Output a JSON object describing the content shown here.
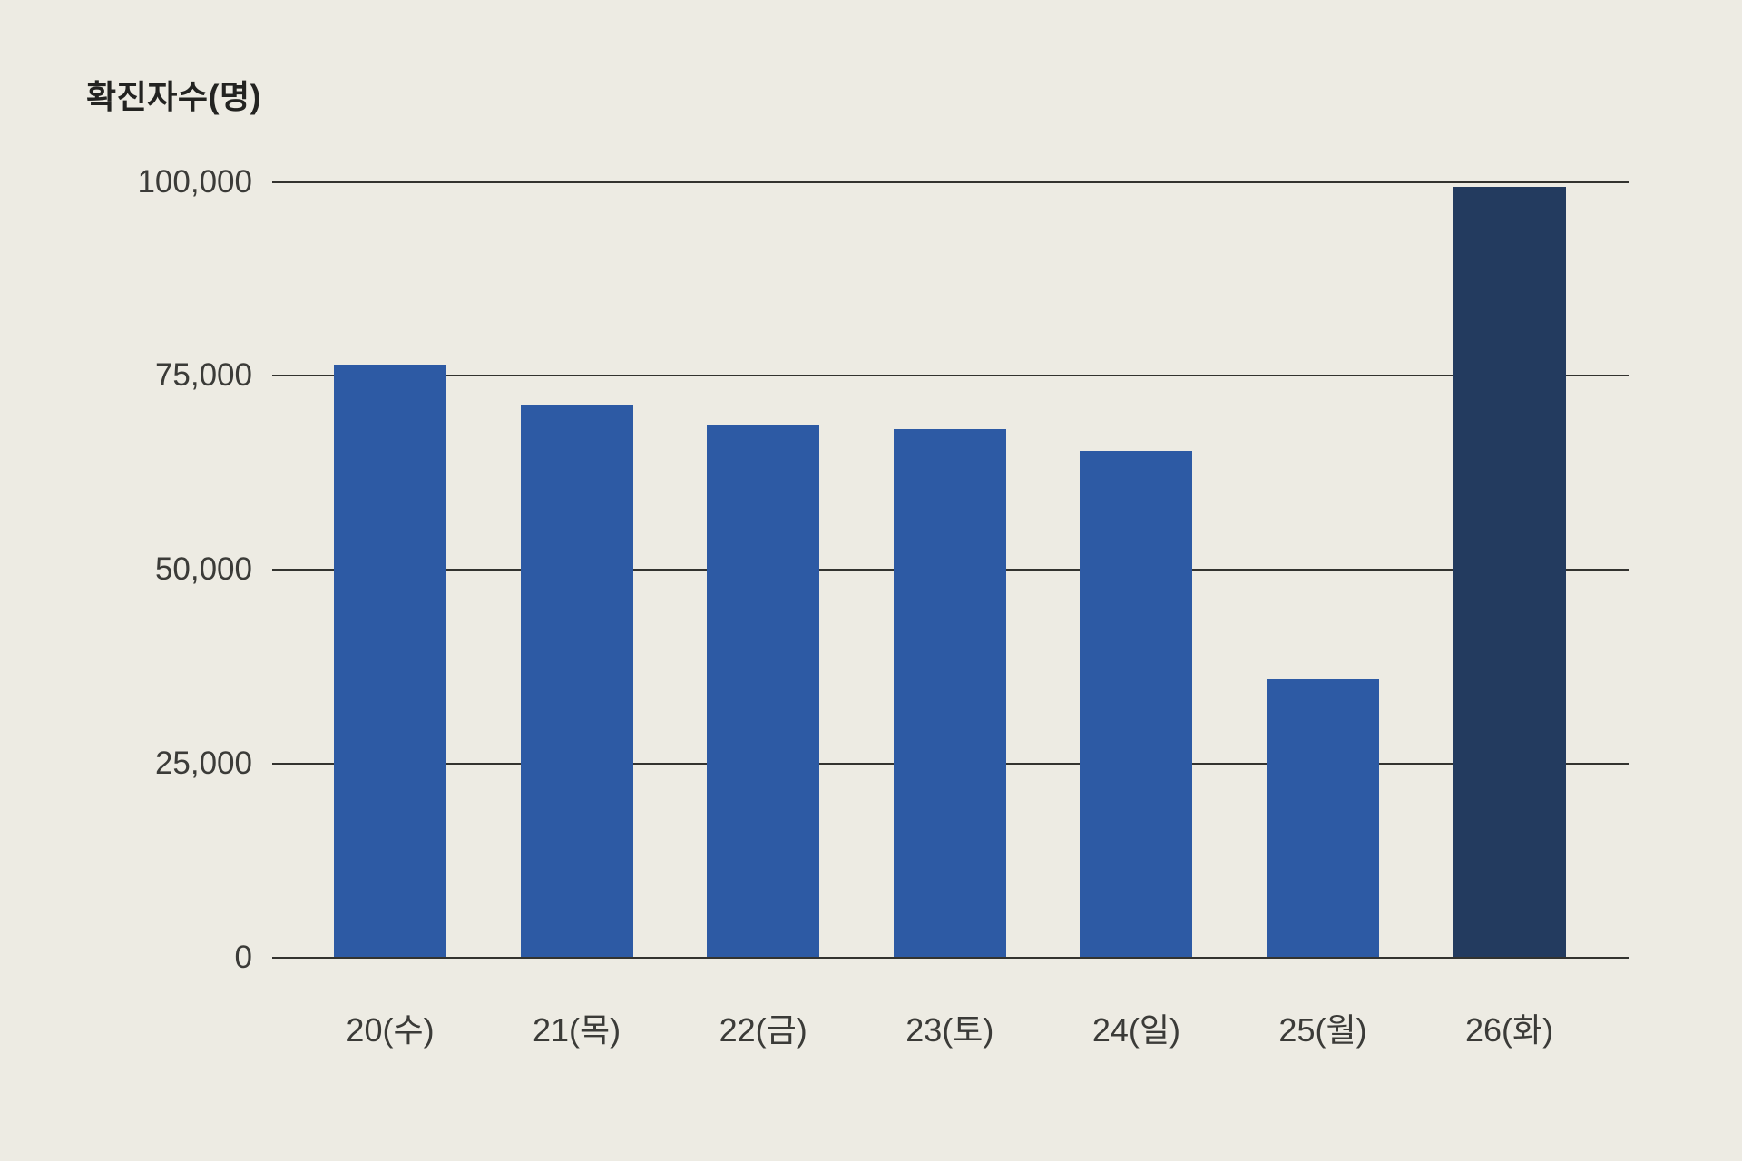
{
  "chart_data": {
    "type": "bar",
    "title": "확진자수(명)",
    "categories": [
      "20(수)",
      "21(목)",
      "22(금)",
      "23(토)",
      "24(일)",
      "25(월)",
      "26(화)"
    ],
    "values": [
      76400,
      71200,
      68600,
      68100,
      65400,
      35900,
      99300
    ],
    "xlabel": "",
    "ylabel": "확진자수(명)",
    "ylim": [
      0,
      100000
    ],
    "ytick_interval": 25000,
    "ytick_labels": [
      "0",
      "25,000",
      "50,000",
      "75,000",
      "100,000"
    ],
    "grid": true,
    "legend": false,
    "highlight_index": 6,
    "colors": {
      "bar": "#2d5aa4",
      "highlight_bar": "#233b5f",
      "background": "#edebe3",
      "gridline": "#33332f",
      "tick_text": "#3b3b38",
      "title_text": "#232321"
    }
  }
}
